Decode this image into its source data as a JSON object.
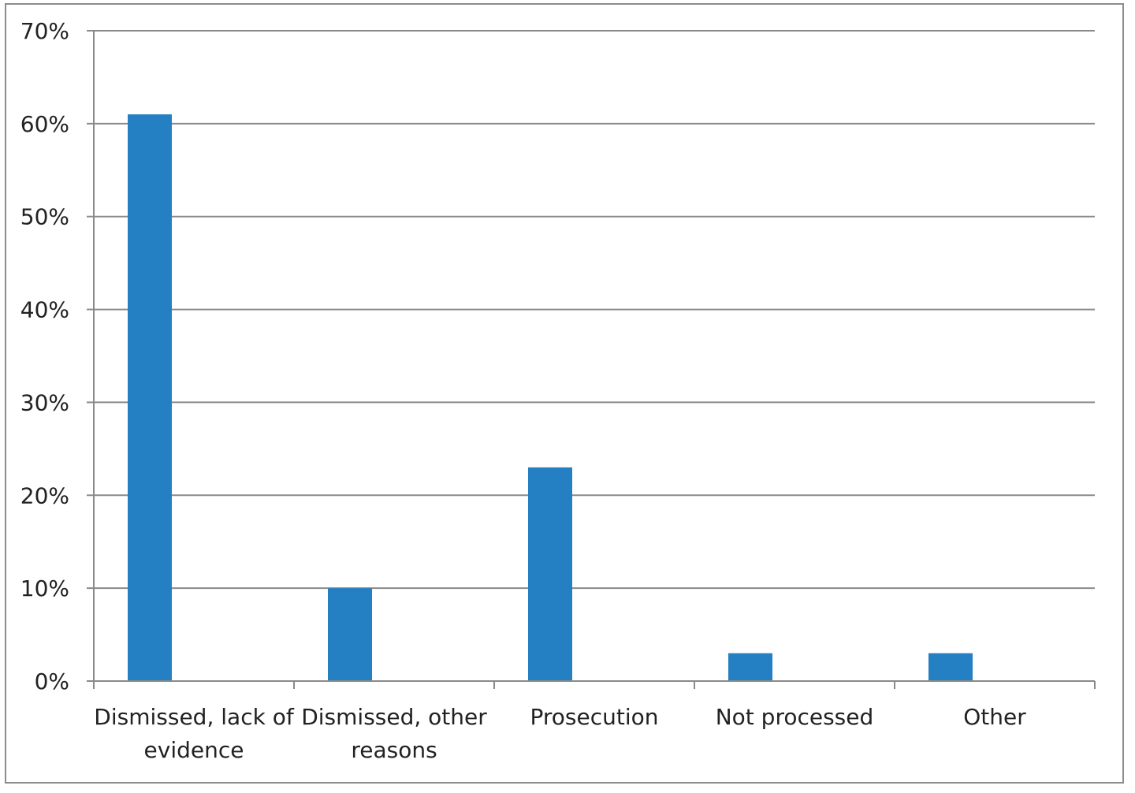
{
  "chart_data": {
    "type": "bar",
    "categories": [
      [
        "Dismissed, lack of",
        "evidence"
      ],
      [
        "Dismissed, other",
        "reasons"
      ],
      [
        "Prosecution"
      ],
      [
        "Not processed"
      ],
      [
        "Other"
      ]
    ],
    "values": [
      61,
      10,
      23,
      3,
      3
    ],
    "yticks": [
      "0%",
      "10%",
      "20%",
      "30%",
      "40%",
      "50%",
      "60%",
      "70%"
    ],
    "ylim": [
      0,
      70
    ],
    "grid": true,
    "bar_color": "#2580c3",
    "axis_color": "#8a8a8a"
  }
}
